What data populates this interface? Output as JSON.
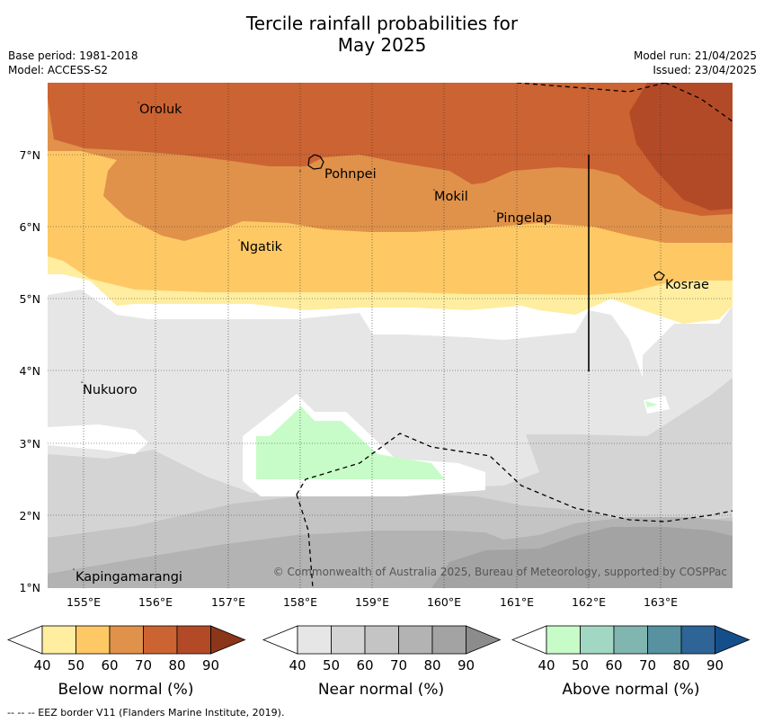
{
  "title_line1": "Tercile rainfall probabilities for",
  "title_line2": "May 2025",
  "meta_left": [
    "Base period: 1981-2018",
    "Model: ACCESS-S2"
  ],
  "meta_right": [
    "Model run: 21/04/2025",
    "Issued: 23/04/2025"
  ],
  "map": {
    "lat_ticks": [
      "7°N",
      "6°N",
      "5°N",
      "4°N",
      "3°N",
      "2°N",
      "1°N"
    ],
    "lon_ticks": [
      "155°E",
      "156°E",
      "157°E",
      "158°E",
      "159°E",
      "160°E",
      "161°E",
      "162°E",
      "163°E"
    ],
    "places": [
      "Oroluk",
      "Pohnpei",
      "Mokil",
      "Pingelap",
      "Ngatik",
      "Kosrae",
      "Nukuoro",
      "Kapingamarangi"
    ],
    "copyright": "© Commonwealth of Australia 2025, Bureau of Meteorology, supported by COSPPac"
  },
  "legends": [
    {
      "label": "Below normal (%)",
      "ticks": [
        "40",
        "50",
        "60",
        "70",
        "80",
        "90"
      ],
      "colors": [
        "#ffeda0",
        "#fec965",
        "#e0924a",
        "#cc6332",
        "#b34a27",
        "#8b3519"
      ]
    },
    {
      "label": "Near normal (%)",
      "ticks": [
        "40",
        "50",
        "60",
        "70",
        "80",
        "90"
      ],
      "colors": [
        "#e6e6e6",
        "#d4d4d4",
        "#c4c4c4",
        "#b3b3b3",
        "#a3a3a3",
        "#8c8c8c"
      ]
    },
    {
      "label": "Above normal (%)",
      "ticks": [
        "40",
        "50",
        "60",
        "70",
        "80",
        "90"
      ],
      "colors": [
        "#c7fcc8",
        "#a2d8c3",
        "#80b5b0",
        "#5891a0",
        "#2e6496",
        "#144f8c"
      ]
    }
  ],
  "footnote": "--  --  -- EEZ border V11 (Flanders Marine Institute, 2019)."
}
